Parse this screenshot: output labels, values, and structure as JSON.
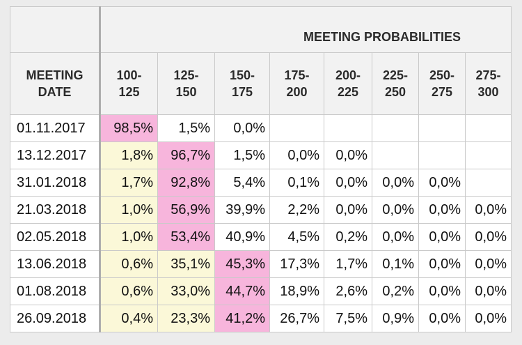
{
  "table": {
    "group_header": "MEETING PROBABILITIES",
    "date_header_line1": "MEETING",
    "date_header_line2": "DATE",
    "columns": [
      {
        "top": "100-",
        "bottom": "125"
      },
      {
        "top": "125-",
        "bottom": "150"
      },
      {
        "top": "150-",
        "bottom": "175"
      },
      {
        "top": "175-",
        "bottom": "200"
      },
      {
        "top": "200-",
        "bottom": "225"
      },
      {
        "top": "225-",
        "bottom": "250"
      },
      {
        "top": "250-",
        "bottom": "275"
      },
      {
        "top": "275-",
        "bottom": "300"
      }
    ],
    "rows": [
      {
        "date": "01.11.2017",
        "values": [
          "98,5%",
          "1,5%",
          "0,0%",
          "",
          "",
          "",
          "",
          ""
        ],
        "highlight": [
          "pink",
          "none",
          "none",
          "none",
          "none",
          "none",
          "none",
          "none"
        ]
      },
      {
        "date": "13.12.2017",
        "values": [
          "1,8%",
          "96,7%",
          "1,5%",
          "0,0%",
          "0,0%",
          "",
          "",
          ""
        ],
        "highlight": [
          "yellow",
          "pink",
          "none",
          "none",
          "none",
          "none",
          "none",
          "none"
        ]
      },
      {
        "date": "31.01.2018",
        "values": [
          "1,7%",
          "92,8%",
          "5,4%",
          "0,1%",
          "0,0%",
          "0,0%",
          "0,0%",
          ""
        ],
        "highlight": [
          "yellow",
          "pink",
          "none",
          "none",
          "none",
          "none",
          "none",
          "none"
        ]
      },
      {
        "date": "21.03.2018",
        "values": [
          "1,0%",
          "56,9%",
          "39,9%",
          "2,2%",
          "0,0%",
          "0,0%",
          "0,0%",
          "0,0%"
        ],
        "highlight": [
          "yellow",
          "pink",
          "none",
          "none",
          "none",
          "none",
          "none",
          "none"
        ]
      },
      {
        "date": "02.05.2018",
        "values": [
          "1,0%",
          "53,4%",
          "40,9%",
          "4,5%",
          "0,2%",
          "0,0%",
          "0,0%",
          "0,0%"
        ],
        "highlight": [
          "yellow",
          "pink",
          "none",
          "none",
          "none",
          "none",
          "none",
          "none"
        ]
      },
      {
        "date": "13.06.2018",
        "values": [
          "0,6%",
          "35,1%",
          "45,3%",
          "17,3%",
          "1,7%",
          "0,1%",
          "0,0%",
          "0,0%"
        ],
        "highlight": [
          "yellow",
          "yellow",
          "pink",
          "none",
          "none",
          "none",
          "none",
          "none"
        ]
      },
      {
        "date": "01.08.2018",
        "values": [
          "0,6%",
          "33,0%",
          "44,7%",
          "18,9%",
          "2,6%",
          "0,2%",
          "0,0%",
          "0,0%"
        ],
        "highlight": [
          "yellow",
          "yellow",
          "pink",
          "none",
          "none",
          "none",
          "none",
          "none"
        ]
      },
      {
        "date": "26.09.2018",
        "values": [
          "0,4%",
          "23,3%",
          "41,2%",
          "26,7%",
          "7,5%",
          "0,9%",
          "0,0%",
          "0,0%"
        ],
        "highlight": [
          "yellow",
          "yellow",
          "pink",
          "none",
          "none",
          "none",
          "none",
          "none"
        ]
      }
    ]
  },
  "colors": {
    "highlight_pink": "#f7b5dc",
    "highlight_yellow": "#fbf8d8",
    "header_background": "#f2f2f2",
    "border": "#c9c9c9"
  }
}
